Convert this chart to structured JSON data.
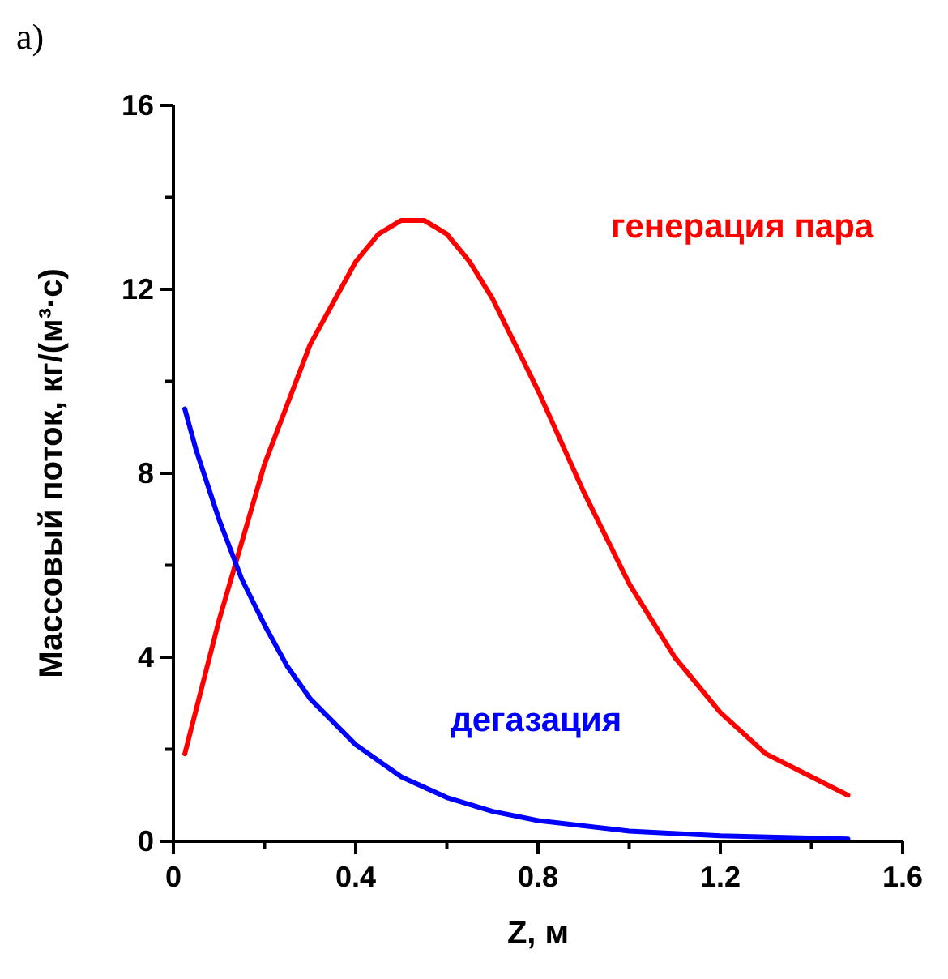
{
  "chart_data": {
    "type": "line",
    "title": "a)",
    "xlabel": "Z, м",
    "ylabel": "Массовый поток, кг/(м³·с)",
    "xlim": [
      0,
      1.6
    ],
    "ylim": [
      0,
      16
    ],
    "xticks": [
      0,
      {
        "value": 0.2,
        "label": null
      },
      0.4,
      {
        "value": 0.6,
        "label": null
      },
      0.8,
      {
        "value": 1.0,
        "label": null
      },
      1.2,
      {
        "value": 1.4,
        "label": null
      },
      1.6
    ],
    "yticks": [
      0,
      {
        "value": 2,
        "label": null
      },
      4,
      {
        "value": 6,
        "label": null
      },
      8,
      {
        "value": 10,
        "label": null
      },
      12,
      {
        "value": 14,
        "label": null
      },
      16
    ],
    "grid": false,
    "series": [
      {
        "name": "генерация пара",
        "color": "#ff0000",
        "x": [
          0.025,
          0.1,
          0.2,
          0.3,
          0.35,
          0.4,
          0.45,
          0.5,
          0.55,
          0.6,
          0.65,
          0.7,
          0.8,
          0.9,
          1.0,
          1.1,
          1.2,
          1.3,
          1.4,
          1.48
        ],
        "values": [
          1.9,
          4.8,
          8.2,
          10.8,
          11.7,
          12.6,
          13.2,
          13.5,
          13.5,
          13.2,
          12.6,
          11.8,
          9.8,
          7.6,
          5.6,
          4.0,
          2.8,
          1.9,
          1.4,
          1.0
        ]
      },
      {
        "name": "дегазация",
        "color": "#0000ff",
        "x": [
          0.025,
          0.05,
          0.1,
          0.15,
          0.2,
          0.25,
          0.3,
          0.4,
          0.5,
          0.6,
          0.7,
          0.8,
          1.0,
          1.2,
          1.48
        ],
        "values": [
          9.4,
          8.5,
          7.0,
          5.7,
          4.7,
          3.8,
          3.1,
          2.1,
          1.4,
          0.95,
          0.65,
          0.45,
          0.22,
          0.12,
          0.05
        ]
      }
    ]
  }
}
